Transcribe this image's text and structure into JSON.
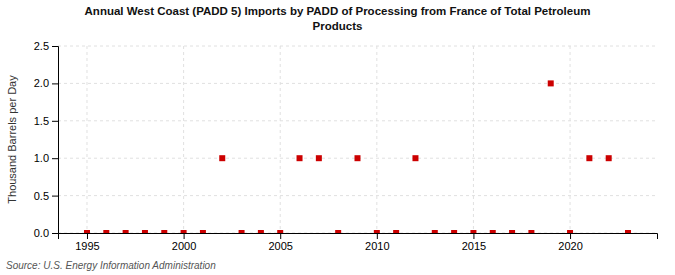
{
  "chart_data": {
    "type": "scatter",
    "title": "Annual West Coast (PADD 5) Imports by PADD of Processing from France of Total Petroleum\nProducts",
    "ylabel": "Thousand Barrels per Day",
    "annotations": [
      "Source: U.S. Energy Information Administration"
    ],
    "x": [
      1995,
      1996,
      1997,
      1998,
      1999,
      2000,
      2001,
      2002,
      2003,
      2004,
      2005,
      2006,
      2007,
      2008,
      2009,
      2010,
      2011,
      2012,
      2013,
      2014,
      2015,
      2016,
      2017,
      2018,
      2019,
      2020,
      2021,
      2022,
      2023
    ],
    "values": [
      0.0,
      0.0,
      0.0,
      0.0,
      0.0,
      0.0,
      0.0,
      1.0,
      0.0,
      0.0,
      0.0,
      1.0,
      1.0,
      0.0,
      1.0,
      0.0,
      0.0,
      1.0,
      0.0,
      0.0,
      0.0,
      0.0,
      0.0,
      0.0,
      2.0,
      0.0,
      1.0,
      1.0,
      0.0
    ],
    "color": "#cc0000",
    "marker": "square",
    "xlim": [
      1993.5,
      2024.5
    ],
    "ylim": [
      0.0,
      2.5
    ],
    "xticks": [
      1995,
      2000,
      2005,
      2010,
      2015,
      2020
    ],
    "yticks": [
      {
        "value": 0.0,
        "label": "0.0"
      },
      0.5,
      {
        "value": 1.0,
        "label": "1.0"
      },
      1.5,
      {
        "value": 2.0,
        "label": "2.0"
      },
      2.5
    ],
    "grid": true
  }
}
